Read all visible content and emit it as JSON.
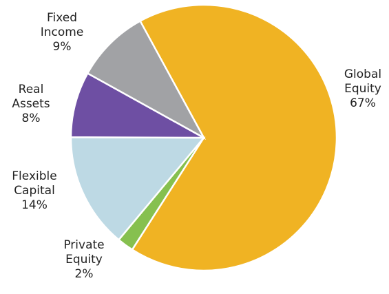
{
  "chart_data": {
    "type": "pie",
    "categories": [
      "Global Equity",
      "Private Equity",
      "Flexible Capital",
      "Real Assets",
      "Fixed Income"
    ],
    "values": [
      67,
      2,
      14,
      8,
      9
    ],
    "value_labels": [
      "67%",
      "2%",
      "14%",
      "8%",
      "9%"
    ],
    "colors": [
      "#f0b323",
      "#86c04f",
      "#bdd9e4",
      "#6e4fa3",
      "#a1a2a5"
    ]
  }
}
